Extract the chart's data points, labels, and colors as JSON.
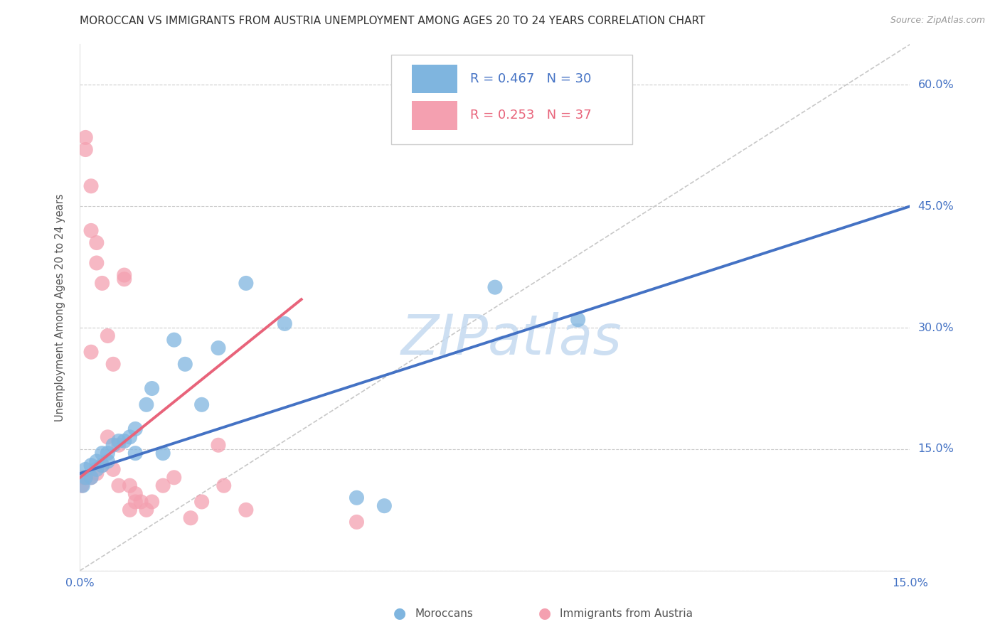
{
  "title": "MOROCCAN VS IMMIGRANTS FROM AUSTRIA UNEMPLOYMENT AMONG AGES 20 TO 24 YEARS CORRELATION CHART",
  "source": "Source: ZipAtlas.com",
  "ylabel": "Unemployment Among Ages 20 to 24 years",
  "xlim": [
    0.0,
    0.15
  ],
  "ylim": [
    0.0,
    0.65
  ],
  "xticks": [
    0.0,
    0.025,
    0.05,
    0.075,
    0.1,
    0.125,
    0.15
  ],
  "yticks": [
    0.0,
    0.15,
    0.3,
    0.45,
    0.6
  ],
  "ytick_labels": [
    "",
    "15.0%",
    "30.0%",
    "45.0%",
    "60.0%"
  ],
  "xtick_labels": [
    "0.0%",
    "",
    "",
    "",
    "",
    "",
    "15.0%"
  ],
  "moroccan_R": 0.467,
  "moroccan_N": 30,
  "austria_R": 0.253,
  "austria_N": 37,
  "moroccan_color": "#7fb5df",
  "austria_color": "#f4a0b0",
  "moroccan_line_color": "#4472c4",
  "austria_line_color": "#e8637a",
  "background_color": "#ffffff",
  "watermark_color": "#c5daf0",
  "moroccan_line_x0": 0.0,
  "moroccan_line_y0": 0.12,
  "moroccan_line_x1": 0.15,
  "moroccan_line_y1": 0.45,
  "austria_line_x0": 0.0,
  "austria_line_y0": 0.115,
  "austria_line_x1": 0.04,
  "austria_line_y1": 0.335,
  "moroccan_x": [
    0.0005,
    0.001,
    0.001,
    0.002,
    0.002,
    0.003,
    0.003,
    0.004,
    0.004,
    0.005,
    0.005,
    0.006,
    0.007,
    0.008,
    0.009,
    0.01,
    0.01,
    0.012,
    0.013,
    0.015,
    0.017,
    0.019,
    0.022,
    0.025,
    0.03,
    0.037,
    0.05,
    0.055,
    0.075,
    0.09
  ],
  "moroccan_y": [
    0.105,
    0.115,
    0.125,
    0.13,
    0.115,
    0.135,
    0.125,
    0.145,
    0.13,
    0.145,
    0.135,
    0.155,
    0.16,
    0.16,
    0.165,
    0.175,
    0.145,
    0.205,
    0.225,
    0.145,
    0.285,
    0.255,
    0.205,
    0.275,
    0.355,
    0.305,
    0.09,
    0.08,
    0.35,
    0.31
  ],
  "austria_x": [
    0.0003,
    0.0005,
    0.001,
    0.001,
    0.001,
    0.002,
    0.002,
    0.002,
    0.003,
    0.003,
    0.003,
    0.004,
    0.004,
    0.005,
    0.005,
    0.006,
    0.006,
    0.007,
    0.007,
    0.008,
    0.008,
    0.009,
    0.009,
    0.01,
    0.01,
    0.011,
    0.012,
    0.013,
    0.015,
    0.017,
    0.02,
    0.022,
    0.025,
    0.026,
    0.03,
    0.05,
    0.002
  ],
  "austria_y": [
    0.105,
    0.115,
    0.52,
    0.535,
    0.115,
    0.475,
    0.42,
    0.115,
    0.405,
    0.38,
    0.12,
    0.355,
    0.13,
    0.29,
    0.165,
    0.255,
    0.125,
    0.155,
    0.105,
    0.36,
    0.365,
    0.105,
    0.075,
    0.085,
    0.095,
    0.085,
    0.075,
    0.085,
    0.105,
    0.115,
    0.065,
    0.085,
    0.155,
    0.105,
    0.075,
    0.06,
    0.27
  ]
}
